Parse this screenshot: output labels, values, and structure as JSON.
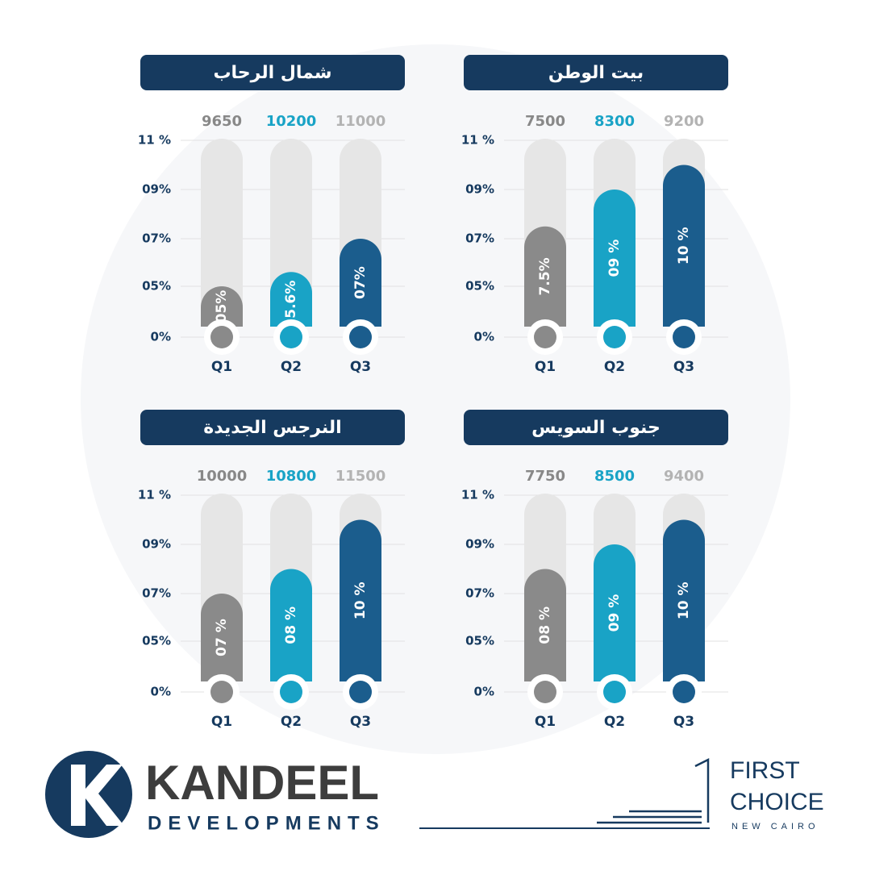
{
  "chart_data": [
    {
      "type": "bar",
      "title": "شمال الرحاب",
      "categories": [
        "Q1",
        "Q2",
        "Q3"
      ],
      "values": [
        5,
        5.6,
        7
      ],
      "value_labels": [
        "05%",
        "5.6%",
        "07%"
      ],
      "price_labels": [
        9650,
        10200,
        11000
      ],
      "colors": [
        "#8a8a8a",
        "#19a3c6",
        "#1b5d8d"
      ],
      "price_colors": [
        "#888888",
        "#19a3c6",
        "#b3b3b3"
      ],
      "ylim": [
        0,
        11
      ],
      "yticks": [
        {
          "value": 0,
          "label": "0%"
        },
        {
          "value": 5,
          "label": "05%"
        },
        {
          "value": 7,
          "label": "07%"
        },
        {
          "value": 9,
          "label": "09%"
        },
        {
          "value": 11,
          "label": "11 %"
        }
      ],
      "grid": true
    },
    {
      "type": "bar",
      "title": "بيت الوطن",
      "categories": [
        "Q1",
        "Q2",
        "Q3"
      ],
      "values": [
        7.5,
        9,
        10
      ],
      "value_labels": [
        "7.5%",
        "09 %",
        "10 %"
      ],
      "price_labels": [
        7500,
        8300,
        9200
      ],
      "colors": [
        "#8a8a8a",
        "#19a3c6",
        "#1b5d8d"
      ],
      "price_colors": [
        "#888888",
        "#19a3c6",
        "#b3b3b3"
      ],
      "ylim": [
        0,
        11
      ],
      "yticks": [
        {
          "value": 0,
          "label": "0%"
        },
        {
          "value": 5,
          "label": "05%"
        },
        {
          "value": 7,
          "label": "07%"
        },
        {
          "value": 9,
          "label": "09%"
        },
        {
          "value": 11,
          "label": "11 %"
        }
      ],
      "grid": true
    },
    {
      "type": "bar",
      "title": "النرجس الجديدة",
      "categories": [
        "Q1",
        "Q2",
        "Q3"
      ],
      "values": [
        7,
        8,
        10
      ],
      "value_labels": [
        "07 %",
        "08 %",
        "10 %"
      ],
      "price_labels": [
        10000,
        10800,
        11500
      ],
      "colors": [
        "#8a8a8a",
        "#19a3c6",
        "#1b5d8d"
      ],
      "price_colors": [
        "#888888",
        "#19a3c6",
        "#b3b3b3"
      ],
      "ylim": [
        0,
        11
      ],
      "yticks": [
        {
          "value": 0,
          "label": "0%"
        },
        {
          "value": 5,
          "label": "05%"
        },
        {
          "value": 7,
          "label": "07%"
        },
        {
          "value": 9,
          "label": "09%"
        },
        {
          "value": 11,
          "label": "11 %"
        }
      ],
      "grid": true
    },
    {
      "type": "bar",
      "title": "جنوب السويس",
      "categories": [
        "Q1",
        "Q2",
        "Q3"
      ],
      "values": [
        8,
        9,
        10
      ],
      "value_labels": [
        "08 %",
        "09 %",
        "10 %"
      ],
      "price_labels": [
        7750,
        8500,
        9400
      ],
      "colors": [
        "#8a8a8a",
        "#19a3c6",
        "#1b5d8d"
      ],
      "price_colors": [
        "#888888",
        "#19a3c6",
        "#b3b3b3"
      ],
      "ylim": [
        0,
        11
      ],
      "yticks": [
        {
          "value": 0,
          "label": "0%"
        },
        {
          "value": 5,
          "label": "05%"
        },
        {
          "value": 7,
          "label": "07%"
        },
        {
          "value": 9,
          "label": "09%"
        },
        {
          "value": 11,
          "label": "11 %"
        }
      ],
      "grid": true
    }
  ],
  "footer": {
    "brand": "KANDEEL",
    "brand_sub": "DEVELOPMENTS",
    "partner_1": "FIRST",
    "partner_2": "CHOICE",
    "partner_sub": "NEW CAIRO"
  }
}
